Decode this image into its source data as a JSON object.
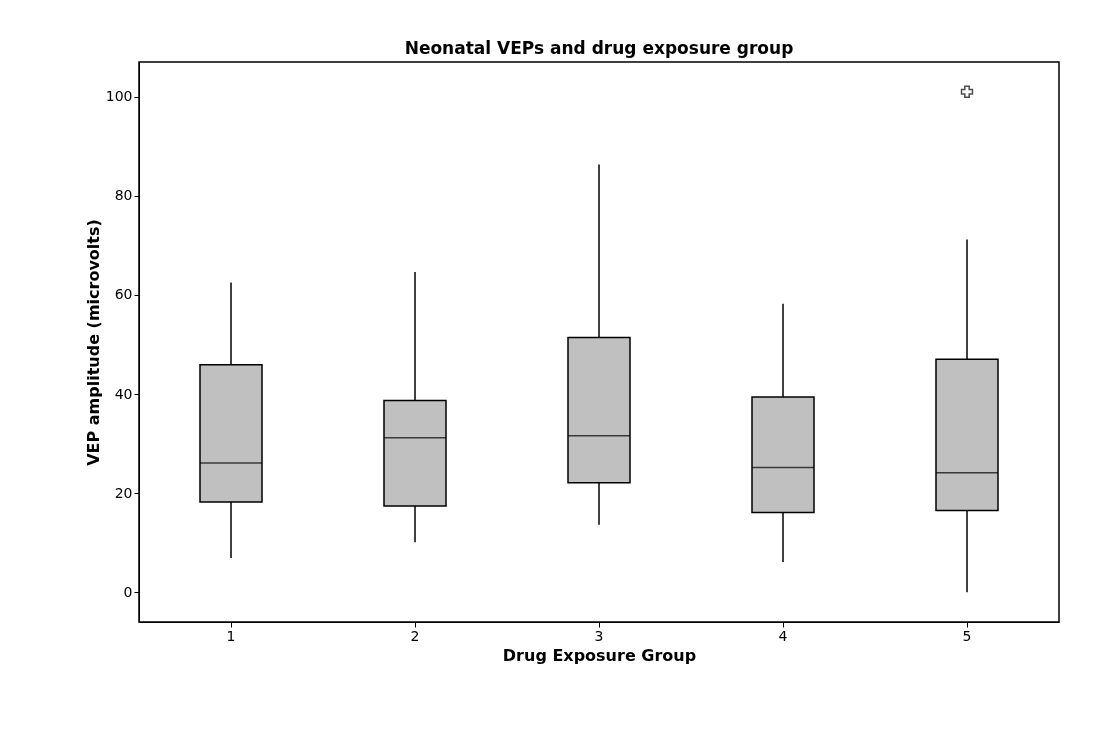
{
  "chart_data": {
    "type": "box",
    "title": "Neonatal VEPs and drug exposure group",
    "xlabel": "Drug Exposure Group",
    "ylabel": "VEP amplitude (microvolts)",
    "categories": [
      "1",
      "2",
      "3",
      "4",
      "5"
    ],
    "color": "#c0c0c0",
    "boxes": [
      {
        "low": 6.9,
        "q1": 18.2,
        "median": 26.1,
        "q3": 45.9,
        "high": 62.5
      },
      {
        "low": 10.1,
        "q1": 17.4,
        "median": 31.2,
        "q3": 38.7,
        "high": 64.6
      },
      {
        "low": 13.6,
        "q1": 22.1,
        "median": 31.6,
        "q3": 51.4,
        "high": 86.3
      },
      {
        "low": 6.1,
        "q1": 16.1,
        "median": 25.2,
        "q3": 39.4,
        "high": 58.2
      },
      {
        "low": 0,
        "q1": 16.5,
        "median": 24.1,
        "q3": 47.0,
        "high": 71.2,
        "outliers": [
          101
        ]
      }
    ],
    "ylim": [
      -6,
      107
    ],
    "yticks": [
      0,
      20,
      40,
      60,
      80,
      100
    ],
    "grid": false
  }
}
